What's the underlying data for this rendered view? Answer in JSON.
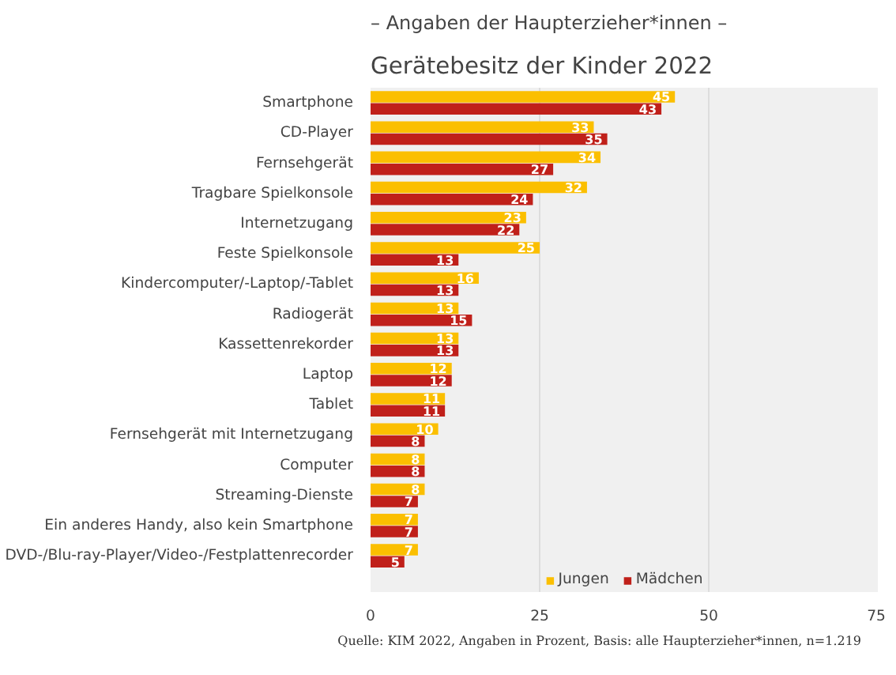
{
  "chart_data": {
    "type": "bar",
    "orientation": "horizontal",
    "title": "Gerätebesitz der Kinder 2022",
    "subtitle": "– Angaben der Haupterzieher*innen –",
    "categories": [
      "Smartphone",
      "CD-Player",
      "Fernsehgerät",
      "Tragbare Spielkonsole",
      "Internetzugang",
      "Feste Spielkonsole",
      "Kindercomputer/-Laptop/-Tablet",
      "Radiogerät",
      "Kassettenrekorder",
      "Laptop",
      "Tablet",
      "Fernsehgerät mit Internetzugang",
      "Computer",
      "Streaming-Dienste",
      "Ein anderes Handy, also kein Smartphone",
      "DVD-/Blu-ray-Player/Video-/Festplattenrecorder"
    ],
    "series": [
      {
        "name": "Jungen",
        "color": "#fbbf00",
        "values": [
          45,
          33,
          34,
          32,
          23,
          25,
          16,
          13,
          13,
          12,
          11,
          10,
          8,
          8,
          7,
          7
        ]
      },
      {
        "name": "Mädchen",
        "color": "#c0201a",
        "values": [
          43,
          35,
          27,
          24,
          22,
          13,
          13,
          15,
          13,
          12,
          11,
          8,
          8,
          7,
          7,
          5
        ]
      }
    ],
    "xlim": [
      0,
      75
    ],
    "xticks": [
      0,
      25,
      50,
      75
    ],
    "grid": "x",
    "legend": "bottom",
    "data_labels": true,
    "annotations": [
      "Quelle: KIM 2022, Angaben in Prozent, Basis: alle Haupterzieher*innen, n=1.219"
    ]
  }
}
